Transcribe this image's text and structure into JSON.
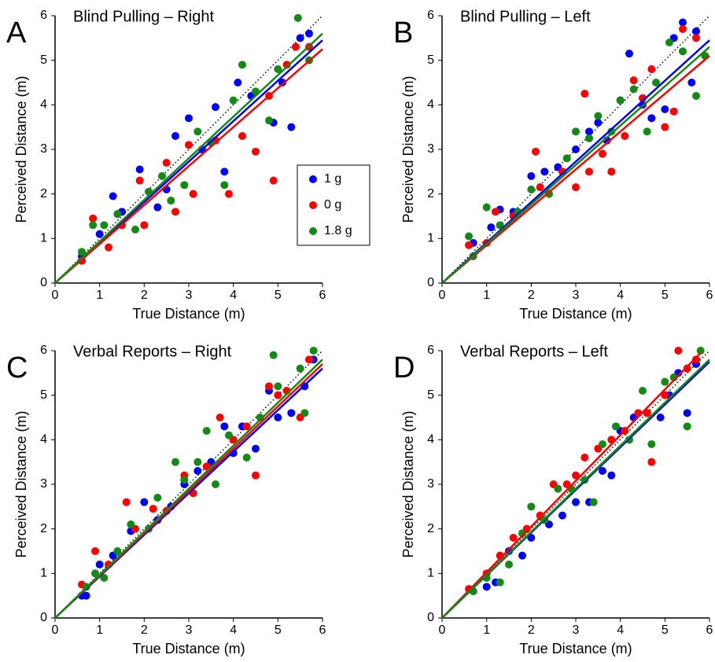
{
  "chart_data": [
    {
      "type": "scatter",
      "panel_label": "A",
      "title": "Blind Pulling – Right",
      "xlabel": "True Distance (m)",
      "ylabel": "Perceived Distance (m)",
      "xlim": [
        0,
        6
      ],
      "ylim": [
        0,
        6
      ],
      "xticks": [
        0,
        1,
        2,
        3,
        4,
        5,
        6
      ],
      "yticks": [
        0,
        1,
        2,
        3,
        4,
        5,
        6
      ],
      "legend": "right",
      "series": [
        {
          "name": "1 g",
          "color": "#0000ff",
          "x": [
            0.6,
            1,
            1.3,
            1.5,
            1.9,
            2.3,
            2.5,
            2.7,
            3.0,
            3.3,
            3.6,
            3.8,
            4.1,
            4.4,
            4.9,
            5.1,
            5.3,
            5.5,
            5.7
          ],
          "y": [
            0.6,
            1.1,
            1.95,
            1.6,
            2.55,
            1.7,
            2.1,
            3.3,
            3.7,
            3.0,
            3.95,
            2.5,
            4.5,
            4.2,
            3.6,
            4.5,
            3.5,
            5.5,
            5.6
          ],
          "fit_x": [
            0,
            6
          ],
          "fit_y": [
            0,
            5.45
          ]
        },
        {
          "name": "0 g",
          "color": "#ff0000",
          "x": [
            0.6,
            0.85,
            1.2,
            1.5,
            1.9,
            2.0,
            2.5,
            2.7,
            3.0,
            3.1,
            3.6,
            3.9,
            4.2,
            4.5,
            4.9,
            4.8,
            5.2,
            5.4,
            5.7
          ],
          "y": [
            0.5,
            1.45,
            0.8,
            1.3,
            2.3,
            1.3,
            2.7,
            1.6,
            3.1,
            2.0,
            3.2,
            2.0,
            3.3,
            2.95,
            2.3,
            4.2,
            4.9,
            5.3,
            5.3
          ],
          "fit_x": [
            0,
            6
          ],
          "fit_y": [
            0,
            5.25
          ]
        },
        {
          "name": "1.8 g",
          "color": "#138a13",
          "x": [
            0.6,
            0.85,
            1.1,
            1.4,
            1.8,
            2.1,
            2.4,
            2.6,
            2.9,
            3.2,
            3.5,
            3.8,
            4.0,
            4.2,
            4.5,
            4.8,
            5.0,
            5.45,
            5.7
          ],
          "y": [
            0.7,
            1.3,
            1.3,
            1.55,
            1.2,
            2.05,
            2.4,
            1.85,
            2.2,
            3.4,
            3.15,
            2.2,
            4.1,
            4.9,
            4.3,
            3.65,
            4.8,
            5.95,
            5.0
          ],
          "fit_x": [
            0,
            6
          ],
          "fit_y": [
            0,
            5.6
          ]
        }
      ]
    },
    {
      "type": "scatter",
      "panel_label": "B",
      "title": "Blind Pulling – Left",
      "xlabel": "True Distance (m)",
      "ylabel": "Perceived Distance (m)",
      "xlim": [
        0,
        6
      ],
      "ylim": [
        0,
        6
      ],
      "xticks": [
        0,
        1,
        2,
        3,
        4,
        5,
        6
      ],
      "yticks": [
        0,
        1,
        2,
        3,
        4,
        5,
        6
      ],
      "series": [
        {
          "color": "#0000ff",
          "x": [
            0.7,
            1.1,
            1.3,
            1.6,
            2.0,
            2.3,
            2.6,
            3.0,
            3.3,
            3.5,
            3.7,
            4.0,
            4.2,
            4.5,
            4.7,
            5.0,
            5.2,
            5.4,
            5.7,
            5.6
          ],
          "y": [
            0.9,
            1.25,
            1.65,
            1.6,
            2.4,
            2.5,
            2.6,
            3.0,
            3.4,
            3.6,
            3.2,
            4.1,
            5.15,
            4.0,
            3.7,
            3.9,
            5.5,
            5.85,
            5.65,
            4.5
          ],
          "fit_x": [
            0,
            6
          ],
          "fit_y": [
            0,
            5.45
          ]
        },
        {
          "color": "#ff0000",
          "x": [
            0.6,
            1.0,
            1.2,
            1.6,
            2.1,
            2.2,
            2.7,
            3.0,
            3.2,
            3.3,
            3.6,
            3.8,
            4.1,
            4.3,
            4.5,
            4.7,
            5.0,
            5.2,
            5.4,
            5.7
          ],
          "y": [
            0.85,
            0.9,
            1.6,
            1.5,
            2.95,
            2.15,
            2.5,
            2.15,
            4.25,
            2.5,
            2.9,
            2.5,
            3.3,
            4.55,
            4.15,
            4.8,
            3.5,
            3.85,
            5.7,
            5.5
          ],
          "fit_x": [
            0,
            6
          ],
          "fit_y": [
            0,
            5.1
          ]
        },
        {
          "color": "#138a13",
          "x": [
            0.6,
            0.7,
            1.0,
            1.3,
            1.7,
            2.0,
            2.4,
            2.8,
            3.0,
            3.3,
            3.5,
            3.8,
            4.0,
            4.3,
            4.6,
            4.8,
            5.1,
            5.4,
            5.7,
            5.9
          ],
          "y": [
            1.05,
            0.6,
            1.7,
            1.3,
            1.6,
            2.1,
            2.0,
            2.8,
            3.4,
            3.25,
            3.75,
            3.4,
            4.1,
            4.35,
            3.4,
            4.5,
            5.4,
            5.2,
            4.2,
            5.1
          ],
          "fit_x": [
            0,
            6
          ],
          "fit_y": [
            0,
            5.3
          ]
        }
      ]
    },
    {
      "type": "scatter",
      "panel_label": "C",
      "title": "Verbal Reports – Right",
      "xlabel": "True Distance (m)",
      "ylabel": "Perceived Distance (m)",
      "xlim": [
        0,
        6
      ],
      "ylim": [
        0,
        6
      ],
      "xticks": [
        0,
        1,
        2,
        3,
        4,
        5,
        6
      ],
      "yticks": [
        0,
        1,
        2,
        3,
        4,
        5,
        6
      ],
      "series": [
        {
          "color": "#0000ff",
          "x": [
            0.6,
            0.7,
            1.0,
            1.3,
            1.7,
            2.0,
            2.3,
            2.6,
            2.9,
            3.2,
            3.5,
            3.8,
            4.0,
            4.2,
            4.5,
            4.8,
            5.0,
            5.3,
            5.6,
            5.8
          ],
          "y": [
            0.5,
            0.5,
            1.2,
            1.4,
            1.95,
            2.6,
            2.2,
            2.5,
            3.0,
            3.3,
            3.5,
            4.3,
            3.7,
            4.3,
            3.8,
            5.1,
            4.5,
            4.6,
            5.2,
            5.8
          ],
          "fit_x": [
            0,
            6
          ],
          "fit_y": [
            0,
            5.6
          ]
        },
        {
          "color": "#ff0000",
          "x": [
            0.6,
            0.9,
            1.2,
            1.6,
            1.8,
            2.2,
            2.5,
            2.9,
            3.1,
            3.4,
            3.7,
            4.0,
            4.3,
            4.5,
            4.8,
            5.0,
            5.2,
            5.5,
            5.7
          ],
          "y": [
            0.75,
            1.5,
            1.2,
            2.6,
            2.0,
            2.45,
            2.4,
            3.2,
            2.8,
            3.4,
            4.5,
            4.0,
            4.3,
            3.2,
            5.2,
            5.0,
            5.1,
            4.5,
            5.8
          ],
          "fit_x": [
            0,
            6
          ],
          "fit_y": [
            0,
            5.7
          ]
        },
        {
          "color": "#138a13",
          "x": [
            0.7,
            0.9,
            1.1,
            1.4,
            1.7,
            2.1,
            2.3,
            2.7,
            2.9,
            3.2,
            3.4,
            3.6,
            3.9,
            4.3,
            4.6,
            4.9,
            5.0,
            5.5,
            5.6,
            5.8
          ],
          "y": [
            0.7,
            1.0,
            0.9,
            1.5,
            2.1,
            2.0,
            2.7,
            3.5,
            3.1,
            3.5,
            4.2,
            3.0,
            4.1,
            3.6,
            4.5,
            5.9,
            5.2,
            5.6,
            4.6,
            6.0
          ],
          "fit_x": [
            0,
            6
          ],
          "fit_y": [
            0,
            5.8
          ]
        }
      ]
    },
    {
      "type": "scatter",
      "panel_label": "D",
      "title": "Verbal Reports – Left",
      "xlabel": "True Distance (m)",
      "ylabel": "Perceived Distance (m)",
      "xlim": [
        0,
        6
      ],
      "ylim": [
        0,
        6
      ],
      "xticks": [
        0,
        1,
        2,
        3,
        4,
        5,
        6
      ],
      "yticks": [
        0,
        1,
        2,
        3,
        4,
        5,
        6
      ],
      "series": [
        {
          "color": "#0000ff",
          "x": [
            0.7,
            1.0,
            1.2,
            1.5,
            1.8,
            2.0,
            2.4,
            2.7,
            3.0,
            3.3,
            3.6,
            3.8,
            4.0,
            4.3,
            4.6,
            4.9,
            5.1,
            5.3,
            5.5,
            5.7
          ],
          "y": [
            0.6,
            0.7,
            0.8,
            1.5,
            1.4,
            1.8,
            2.1,
            2.3,
            2.6,
            2.6,
            3.3,
            3.2,
            4.2,
            4.5,
            4.6,
            4.5,
            5.0,
            5.5,
            4.6,
            5.7
          ],
          "fit_x": [
            0,
            6
          ],
          "fit_y": [
            0,
            5.75
          ]
        },
        {
          "color": "#ff0000",
          "x": [
            0.6,
            1.0,
            1.3,
            1.6,
            1.9,
            2.2,
            2.5,
            2.8,
            3.0,
            3.2,
            3.5,
            3.8,
            4.1,
            4.4,
            4.6,
            4.7,
            5.0,
            5.3,
            5.5,
            5.7
          ],
          "y": [
            0.65,
            1.0,
            1.4,
            1.8,
            2.0,
            2.3,
            3.0,
            3.0,
            3.2,
            3.6,
            3.8,
            4.0,
            4.2,
            4.6,
            4.6,
            3.5,
            5.0,
            6.0,
            5.6,
            5.8
          ],
          "fit_x": [
            0,
            5.8
          ],
          "fit_y": [
            0,
            5.95
          ]
        },
        {
          "color": "#138a13",
          "x": [
            0.7,
            1.0,
            1.3,
            1.5,
            1.8,
            2.0,
            2.3,
            2.6,
            2.9,
            3.2,
            3.4,
            3.6,
            3.9,
            4.2,
            4.5,
            4.7,
            5.0,
            5.2,
            5.5,
            5.8
          ],
          "y": [
            0.6,
            0.9,
            0.8,
            1.2,
            1.9,
            2.5,
            2.2,
            2.9,
            2.9,
            3.1,
            2.6,
            3.9,
            4.3,
            4.0,
            5.1,
            3.9,
            5.3,
            5.4,
            4.3,
            6.0
          ],
          "fit_x": [
            0,
            6
          ],
          "fit_y": [
            0,
            5.8
          ]
        }
      ]
    }
  ]
}
